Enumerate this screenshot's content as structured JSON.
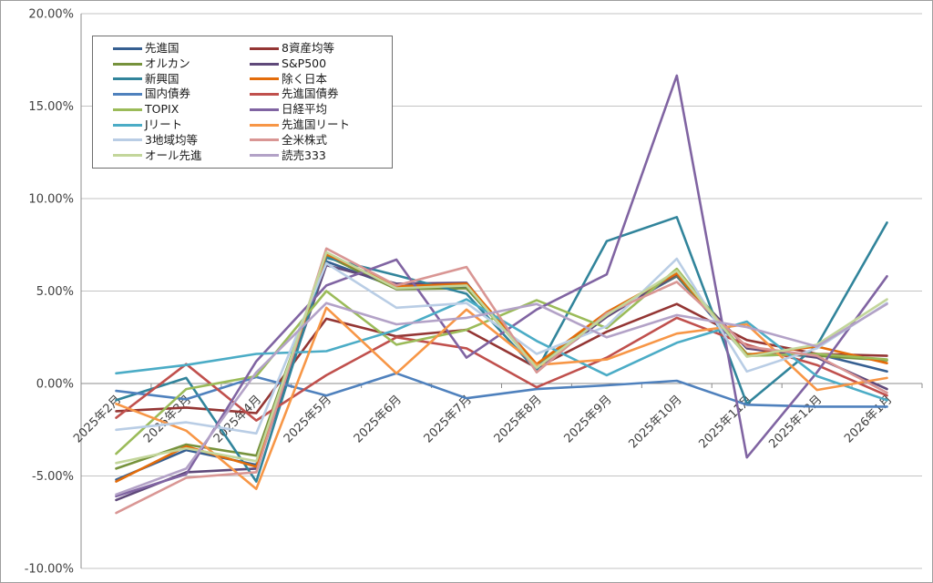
{
  "chart_data": {
    "type": "line",
    "title": "",
    "xlabel": "",
    "ylabel": "",
    "categories": [
      "2025年2月",
      "2025年3月",
      "2025年4月",
      "2025年5月",
      "2025年6月",
      "2025年7月",
      "2025年8月",
      "2025年9月",
      "2025年10月",
      "2025年11月",
      "2025年12月",
      "2026年1月"
    ],
    "ylim": [
      -10,
      20
    ],
    "ytick_step": 5,
    "ytick_labels": [
      "20.00%",
      "15.00%",
      "10.00%",
      "5.00%",
      "0.00%",
      "-5.00%",
      "-10.00%"
    ],
    "grid": true,
    "legend_position": "top-left-inside",
    "series": [
      {
        "name": "先進国",
        "color": "#365F91",
        "values": [
          -5.2,
          -3.6,
          -4.4,
          6.6,
          5.2,
          5.25,
          0.9,
          3.7,
          5.8,
          1.5,
          1.6,
          0.65
        ]
      },
      {
        "name": "8資産均等",
        "color": "#943634",
        "values": [
          -1.5,
          -1.3,
          -1.6,
          3.5,
          2.55,
          2.9,
          0.85,
          2.8,
          4.3,
          2.35,
          1.6,
          1.5
        ]
      },
      {
        "name": "オルカン",
        "color": "#76923C",
        "values": [
          -4.6,
          -3.3,
          -3.9,
          6.9,
          5.1,
          5.15,
          1.0,
          3.75,
          5.85,
          1.6,
          1.5,
          1.25
        ]
      },
      {
        "name": "S&P500",
        "color": "#5F497A",
        "values": [
          -6.3,
          -4.8,
          -4.6,
          6.4,
          5.4,
          5.45,
          0.8,
          3.6,
          5.9,
          1.9,
          1.4,
          -0.3
        ]
      },
      {
        "name": "新興国",
        "color": "#31849B",
        "values": [
          -0.9,
          0.3,
          -5.3,
          6.8,
          5.85,
          4.85,
          0.7,
          7.7,
          9.0,
          -1.1,
          2.05,
          8.7
        ]
      },
      {
        "name": "除く日本",
        "color": "#E36C0A",
        "values": [
          -5.3,
          -3.4,
          -4.5,
          7.0,
          5.25,
          5.4,
          1.05,
          3.85,
          5.95,
          1.55,
          2.0,
          1.1
        ]
      },
      {
        "name": "国内債券",
        "color": "#4F81BD",
        "values": [
          -0.4,
          -0.85,
          0.35,
          -0.65,
          0.55,
          -0.8,
          -0.3,
          -0.1,
          0.15,
          -1.15,
          -1.25,
          -1.25
        ]
      },
      {
        "name": "先進国債券",
        "color": "#C0504D",
        "values": [
          -1.85,
          1.05,
          -2.0,
          0.45,
          2.5,
          1.9,
          -0.2,
          1.4,
          3.55,
          2.1,
          1.0,
          -0.65
        ]
      },
      {
        "name": "TOPIX",
        "color": "#9BBB59",
        "values": [
          -3.8,
          -0.3,
          0.4,
          5.0,
          2.1,
          2.9,
          4.5,
          3.0,
          6.2,
          1.5,
          1.6,
          1.3
        ]
      },
      {
        "name": "日経平均",
        "color": "#8064A2",
        "values": [
          -6.1,
          -4.9,
          1.2,
          5.3,
          6.7,
          1.4,
          4.0,
          5.9,
          16.65,
          -4.0,
          0.6,
          5.8
        ]
      },
      {
        "name": "Jリート",
        "color": "#4BACC6",
        "values": [
          0.55,
          1.0,
          1.6,
          1.75,
          2.9,
          4.55,
          2.3,
          0.45,
          2.2,
          3.35,
          0.4,
          -0.9
        ]
      },
      {
        "name": "先進国リート",
        "color": "#F79646",
        "values": [
          -1.1,
          -2.55,
          -5.7,
          4.1,
          0.55,
          4.0,
          1.0,
          1.3,
          2.7,
          3.2,
          -0.35,
          0.3
        ]
      },
      {
        "name": "3地域均等",
        "color": "#B9CDE5",
        "values": [
          -2.5,
          -2.1,
          -2.7,
          6.5,
          4.1,
          4.35,
          1.6,
          3.1,
          6.75,
          0.65,
          1.9,
          4.35
        ]
      },
      {
        "name": "全米株式",
        "color": "#D99694",
        "values": [
          -7.0,
          -5.1,
          -4.8,
          7.3,
          5.3,
          6.3,
          0.6,
          3.8,
          5.5,
          2.0,
          1.5,
          -0.5
        ]
      },
      {
        "name": "オール先進",
        "color": "#C3D69B",
        "values": [
          -4.3,
          -3.5,
          -4.2,
          7.1,
          5.15,
          5.3,
          0.85,
          3.7,
          6.1,
          1.45,
          2.1,
          4.55
        ]
      },
      {
        "name": "読売333",
        "color": "#B3A2C7",
        "values": [
          -6.0,
          -4.6,
          0.6,
          4.35,
          3.2,
          3.55,
          4.3,
          2.5,
          3.7,
          3.05,
          2.0,
          4.3
        ]
      }
    ],
    "style": {
      "gridline_color": "#C3C3C3",
      "axis_color": "#8C8C8C",
      "label_color": "#3f3f3f",
      "line_width": 2.6
    }
  }
}
